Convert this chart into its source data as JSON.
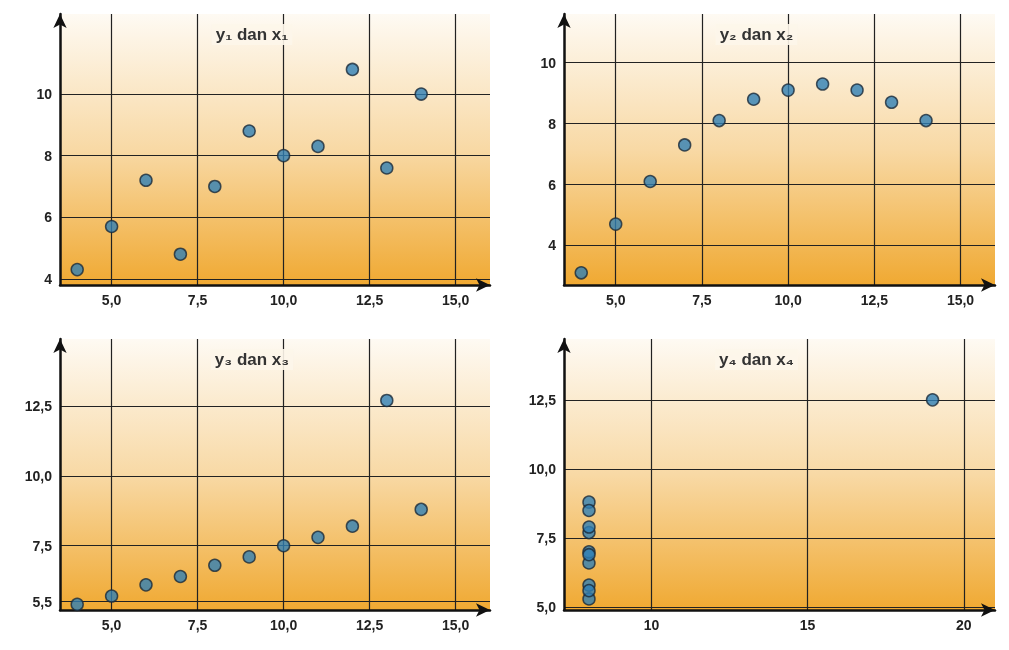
{
  "chart_data": [
    {
      "type": "scatter",
      "title": "y₁ dan x₁",
      "x": [
        10,
        8,
        13,
        9,
        11,
        14,
        6,
        4,
        12,
        7,
        5
      ],
      "values": [
        8.0,
        7.0,
        7.6,
        8.8,
        8.3,
        10.0,
        7.2,
        4.3,
        10.8,
        4.8,
        5.7
      ],
      "color": "#2f7fb5",
      "marker": "circle",
      "grid": true,
      "xlim": [
        3.5,
        16
      ],
      "xticks": [
        {
          "value": 5,
          "label": "5,0"
        },
        {
          "value": 7.5,
          "label": "7,5"
        },
        {
          "value": 10,
          "label": "10,0"
        },
        {
          "value": 12.5,
          "label": "12,5"
        },
        {
          "value": 15,
          "label": "15,0"
        }
      ],
      "ylim": [
        3.8,
        12.6
      ],
      "yticks": [
        4,
        6,
        8,
        10
      ]
    },
    {
      "type": "scatter",
      "title": "y₂ dan x₂",
      "x": [
        10,
        8,
        13,
        9,
        11,
        14,
        6,
        4,
        12,
        7,
        5
      ],
      "values": [
        9.1,
        8.1,
        8.7,
        8.8,
        9.3,
        8.1,
        6.1,
        3.1,
        9.1,
        7.3,
        4.7
      ],
      "color": "#2f7fb5",
      "marker": "circle",
      "grid": true,
      "xlim": [
        3.5,
        16
      ],
      "xticks": [
        {
          "value": 5,
          "label": "5,0"
        },
        {
          "value": 7.5,
          "label": "7,5"
        },
        {
          "value": 10,
          "label": "10,0"
        },
        {
          "value": 12.5,
          "label": "12,5"
        },
        {
          "value": 15,
          "label": "15,0"
        }
      ],
      "ylim": [
        2.7,
        11.6
      ],
      "yticks": [
        4,
        6,
        8,
        10
      ]
    },
    {
      "type": "scatter",
      "title": "y₃ dan x₃",
      "x": [
        10,
        8,
        13,
        9,
        11,
        14,
        6,
        4,
        12,
        7,
        5
      ],
      "values": [
        7.5,
        6.8,
        12.7,
        7.1,
        7.8,
        8.8,
        6.1,
        5.4,
        8.2,
        6.4,
        5.7
      ],
      "color": "#2f7fb5",
      "marker": "circle",
      "grid": true,
      "xlim": [
        3.5,
        16
      ],
      "xticks": [
        {
          "value": 5,
          "label": "5,0"
        },
        {
          "value": 7.5,
          "label": "7,5"
        },
        {
          "value": 10,
          "label": "10,0"
        },
        {
          "value": 12.5,
          "label": "12,5"
        },
        {
          "value": 15,
          "label": "15,0"
        }
      ],
      "ylim": [
        5.2,
        14.9
      ],
      "yticks": [
        {
          "value": 5.5,
          "label": "5,5"
        },
        {
          "value": 7.5,
          "label": "7,5"
        },
        {
          "value": 10,
          "label": "10,0"
        },
        {
          "value": 12.5,
          "label": "12,5"
        }
      ]
    },
    {
      "type": "scatter",
      "title": "y₄ dan x₄",
      "x": [
        8,
        8,
        8,
        8,
        8,
        8,
        8,
        19,
        8,
        8,
        8
      ],
      "values": [
        6.6,
        5.8,
        7.7,
        8.8,
        8.5,
        7.0,
        5.3,
        12.5,
        5.6,
        7.9,
        6.9
      ],
      "color": "#2f7fb5",
      "marker": "circle",
      "grid": true,
      "xlim": [
        7.2,
        21
      ],
      "xticks": [
        10,
        15,
        20
      ],
      "ylim": [
        4.9,
        14.7
      ],
      "yticks": [
        {
          "value": 5,
          "label": "5,0"
        },
        {
          "value": 7.5,
          "label": "7,5"
        },
        {
          "value": 10,
          "label": "10,0"
        },
        {
          "value": 12.5,
          "label": "12,5"
        }
      ]
    }
  ]
}
